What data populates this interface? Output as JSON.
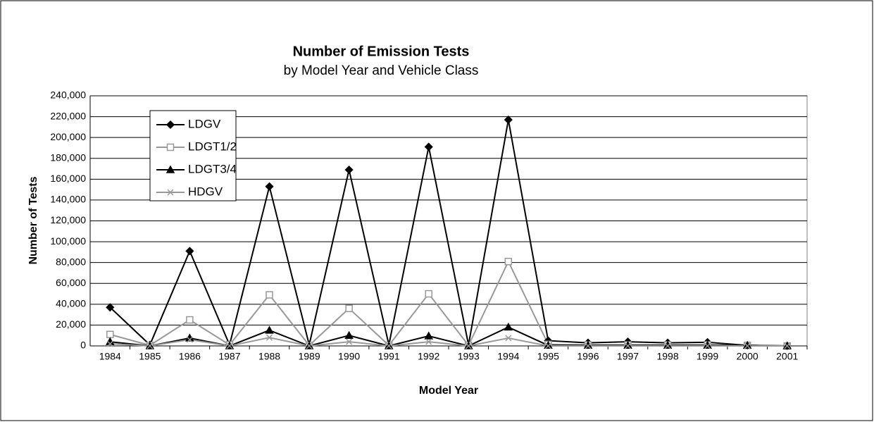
{
  "chart_data": {
    "type": "line",
    "title": "Number of Emission Tests",
    "subtitle": "by Model Year and Vehicle Class",
    "x_label": "Model Year",
    "y_label": "Number of Tests",
    "categories": [
      "1984",
      "1985",
      "1986",
      "1987",
      "1988",
      "1989",
      "1990",
      "1991",
      "1992",
      "1993",
      "1994",
      "1995",
      "1996",
      "1997",
      "1998",
      "1999",
      "2000",
      "2001"
    ],
    "series": [
      {
        "name": "LDGV",
        "color": "#000000",
        "marker": "diamond",
        "values": [
          37000,
          1000,
          91000,
          1000,
          153000,
          1000,
          169000,
          1000,
          191000,
          1000,
          217000,
          5000,
          3000,
          4000,
          3000,
          3500,
          500,
          0
        ]
      },
      {
        "name": "LDGT1/2",
        "color": "#999999",
        "marker": "square",
        "values": [
          11000,
          500,
          25000,
          1000,
          49000,
          500,
          36000,
          500,
          50000,
          500,
          81000,
          1500,
          1000,
          1000,
          1000,
          1000,
          500,
          0
        ]
      },
      {
        "name": "LDGT3/4",
        "color": "#000000",
        "marker": "triangle",
        "values": [
          4000,
          0,
          7500,
          0,
          15000,
          0,
          10000,
          0,
          9500,
          0,
          18000,
          500,
          500,
          500,
          500,
          500,
          500,
          0
        ]
      },
      {
        "name": "HDGV",
        "color": "#999999",
        "marker": "x",
        "values": [
          2000,
          0,
          6000,
          0,
          8000,
          0,
          4000,
          0,
          4000,
          0,
          7500,
          0,
          0,
          0,
          0,
          0,
          0,
          0
        ]
      }
    ],
    "ylim": [
      0,
      240000
    ],
    "yticks": [
      0,
      {
        "value": 20000,
        "label": "20,000"
      },
      {
        "value": 40000,
        "label": "40,000"
      },
      {
        "value": 60000,
        "label": "60,000"
      },
      {
        "value": 80000,
        "label": "80,000"
      },
      {
        "value": 100000,
        "label": "100,000"
      },
      {
        "value": 120000,
        "label": "120,000"
      },
      {
        "value": 140000,
        "label": "140,000"
      },
      {
        "value": 160000,
        "label": "160,000"
      },
      {
        "value": 180000,
        "label": "180,000"
      },
      {
        "value": 200000,
        "label": "200,000"
      },
      {
        "value": 220000,
        "label": "220,000"
      },
      {
        "value": 240000,
        "label": "240,000"
      }
    ],
    "grid": true,
    "legend": "top-left"
  }
}
